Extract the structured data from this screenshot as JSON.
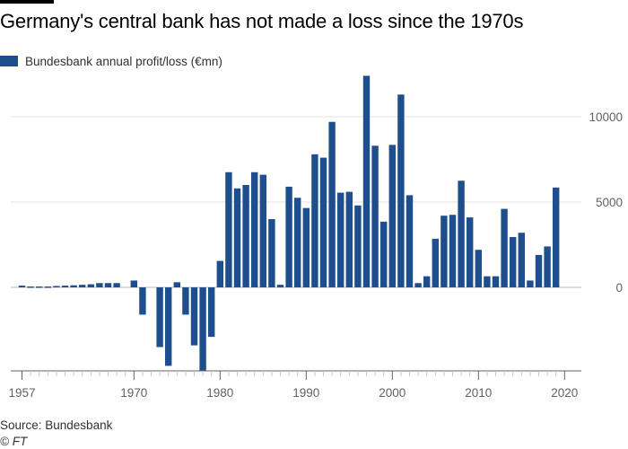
{
  "title": "Germany's central bank has not made a loss since the 1970s",
  "legend": {
    "label": "Bundesbank annual profit/loss (€mn)"
  },
  "source": "Source: Bundesbank",
  "credit": "© FT",
  "colors": {
    "bar": "#1f4e8c",
    "grid": "#e6e2dd",
    "axis": "#66605c",
    "zero_line": "#bdb8b3"
  },
  "chart_data": {
    "type": "bar",
    "title": "Germany's central bank has not made a loss since the 1970s",
    "series_name": "Bundesbank annual profit/loss (€mn)",
    "xlabel": "",
    "ylabel": "",
    "xlim": [
      1957,
      2020
    ],
    "ylim": [
      -5000,
      12500
    ],
    "y_ticks": [
      0,
      5000,
      10000
    ],
    "x_ticks": [
      1957,
      1970,
      1980,
      1990,
      2000,
      2010,
      2020
    ],
    "grid": true,
    "y_axis_side": "right",
    "legend_position": "top-left",
    "years": [
      1957,
      1958,
      1959,
      1960,
      1961,
      1962,
      1963,
      1964,
      1965,
      1966,
      1967,
      1968,
      1969,
      1970,
      1971,
      1972,
      1973,
      1974,
      1975,
      1976,
      1977,
      1978,
      1979,
      1980,
      1981,
      1982,
      1983,
      1984,
      1985,
      1986,
      1987,
      1988,
      1989,
      1990,
      1991,
      1992,
      1993,
      1994,
      1995,
      1996,
      1997,
      1998,
      1999,
      2000,
      2001,
      2002,
      2003,
      2004,
      2005,
      2006,
      2007,
      2008,
      2009,
      2010,
      2011,
      2012,
      2013,
      2014,
      2015,
      2016,
      2017,
      2018,
      2019
    ],
    "values": [
      100,
      50,
      50,
      50,
      80,
      100,
      120,
      150,
      180,
      250,
      250,
      250,
      0,
      400,
      -1600,
      0,
      -3500,
      -4600,
      300,
      -1600,
      -3400,
      -4900,
      -2900,
      1550,
      6750,
      5800,
      6000,
      6750,
      6600,
      4000,
      150,
      5900,
      5250,
      4650,
      7800,
      7600,
      9700,
      5550,
      5600,
      4800,
      12400,
      8300,
      3850,
      8350,
      11300,
      5400,
      250,
      650,
      2850,
      4200,
      4250,
      6250,
      4100,
      2200,
      650,
      650,
      4600,
      2950,
      3200,
      400,
      1900,
      2400,
      5850
    ]
  }
}
